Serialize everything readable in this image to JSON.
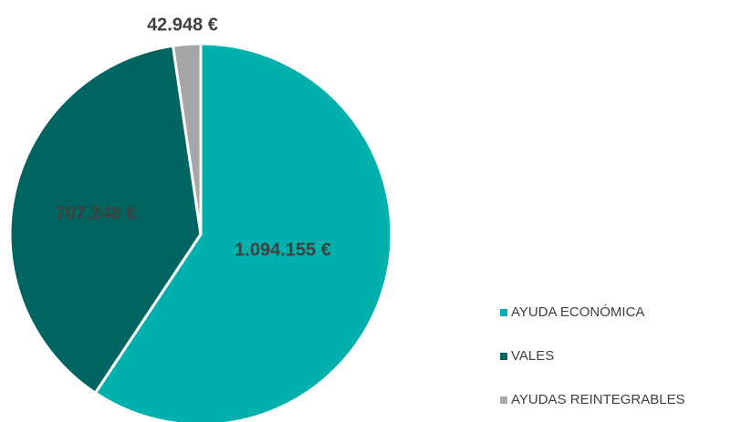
{
  "chart_data": {
    "type": "pie",
    "categories": [
      "AYUDA ECONÓMICA",
      "VALES",
      "AYUDAS REINTEGRABLES"
    ],
    "values": [
      1094155,
      707248,
      42948
    ],
    "value_labels": [
      "1.094.155 €",
      "707.248 €",
      "42.948 €"
    ],
    "colors": [
      "#00b0ad",
      "#006461",
      "#a6a6a6"
    ],
    "legend": "right"
  }
}
